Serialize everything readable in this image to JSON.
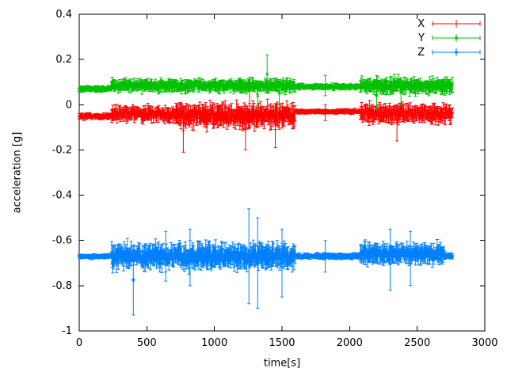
{
  "chart_data": {
    "type": "scatter",
    "style": "yerrorbars",
    "title": "",
    "xlabel": "time[s]",
    "ylabel": "acceleration [g]",
    "xlim": [
      0,
      3000
    ],
    "ylim": [
      -1,
      0.4
    ],
    "xticks": [
      0,
      500,
      1000,
      1500,
      2000,
      2500,
      3000
    ],
    "xtick_labels": [
      "0",
      "500",
      "1000",
      "1500",
      "2000",
      "2500",
      "3000"
    ],
    "yticks": [
      -1,
      -0.8,
      -0.6,
      -0.4,
      -0.2,
      0,
      0.2,
      0.4
    ],
    "ytick_labels": [
      "-1",
      "-0.8",
      "-0.6",
      "-0.4",
      "-0.2",
      "0",
      "0.2",
      "0.4"
    ],
    "grid": false,
    "legend_position": "top-right-inside",
    "background": "#ffffff",
    "data_t_start": 0,
    "data_t_end": 2760,
    "sample_step": 4,
    "series": [
      {
        "name": "X",
        "color": "#ff0000",
        "marker": "plus",
        "baseline": -0.05,
        "segments": [
          {
            "t0": 0,
            "t1": 240,
            "base": -0.05,
            "amp": 0.008,
            "err": 0.012
          },
          {
            "t0": 240,
            "t1": 700,
            "base": -0.04,
            "amp": 0.025,
            "err": 0.03
          },
          {
            "t0": 700,
            "t1": 1600,
            "base": -0.05,
            "amp": 0.035,
            "err": 0.045
          },
          {
            "t0": 1600,
            "t1": 2080,
            "base": -0.03,
            "amp": 0.006,
            "err": 0.01
          },
          {
            "t0": 2080,
            "t1": 2760,
            "base": -0.04,
            "amp": 0.03,
            "err": 0.035
          }
        ],
        "spikes": [
          {
            "t": 770,
            "lo": -0.21,
            "hi": -0.02
          },
          {
            "t": 1230,
            "lo": -0.2,
            "hi": -0.02
          },
          {
            "t": 1260,
            "lo": -0.1,
            "hi": 0.11
          },
          {
            "t": 1450,
            "lo": -0.19,
            "hi": -0.03
          },
          {
            "t": 1820,
            "lo": -0.07,
            "hi": 0.0
          },
          {
            "t": 2350,
            "lo": -0.16,
            "hi": 0.0
          }
        ]
      },
      {
        "name": "Y",
        "color": "#00c000",
        "marker": "cross",
        "baseline": 0.08,
        "segments": [
          {
            "t0": 0,
            "t1": 240,
            "base": 0.07,
            "amp": 0.008,
            "err": 0.012
          },
          {
            "t0": 240,
            "t1": 1600,
            "base": 0.085,
            "amp": 0.02,
            "err": 0.025
          },
          {
            "t0": 1600,
            "t1": 2080,
            "base": 0.08,
            "amp": 0.008,
            "err": 0.012
          },
          {
            "t0": 2080,
            "t1": 2760,
            "base": 0.085,
            "amp": 0.025,
            "err": 0.03
          }
        ],
        "spikes": [
          {
            "t": 1320,
            "lo": -0.01,
            "hi": 0.09
          },
          {
            "t": 1390,
            "lo": 0.05,
            "hi": 0.22
          },
          {
            "t": 1480,
            "lo": 0.0,
            "hi": 0.1
          },
          {
            "t": 1820,
            "lo": 0.04,
            "hi": 0.13
          },
          {
            "t": 2200,
            "lo": -0.02,
            "hi": 0.1
          },
          {
            "t": 2380,
            "lo": 0.0,
            "hi": 0.12
          }
        ]
      },
      {
        "name": "Z",
        "color": "#0080ff",
        "marker": "asterisk",
        "baseline": -0.67,
        "segments": [
          {
            "t0": 0,
            "t1": 240,
            "base": -0.67,
            "amp": 0.006,
            "err": 0.01
          },
          {
            "t0": 240,
            "t1": 1600,
            "base": -0.67,
            "amp": 0.04,
            "err": 0.05
          },
          {
            "t0": 1600,
            "t1": 2080,
            "base": -0.67,
            "amp": 0.008,
            "err": 0.012
          },
          {
            "t0": 2080,
            "t1": 2700,
            "base": -0.66,
            "amp": 0.03,
            "err": 0.04
          },
          {
            "t0": 2700,
            "t1": 2760,
            "base": -0.67,
            "amp": 0.01,
            "err": 0.015
          }
        ],
        "spikes": [
          {
            "t": 400,
            "lo": -0.93,
            "hi": -0.62
          },
          {
            "t": 640,
            "lo": -0.78,
            "hi": -0.56
          },
          {
            "t": 820,
            "lo": -0.8,
            "hi": -0.55
          },
          {
            "t": 1255,
            "lo": -0.88,
            "hi": -0.46
          },
          {
            "t": 1320,
            "lo": -0.9,
            "hi": -0.5
          },
          {
            "t": 1500,
            "lo": -0.85,
            "hi": -0.55
          },
          {
            "t": 1820,
            "lo": -0.74,
            "hi": -0.6
          },
          {
            "t": 2300,
            "lo": -0.82,
            "hi": -0.55
          },
          {
            "t": 2450,
            "lo": -0.8,
            "hi": -0.56
          }
        ]
      }
    ]
  }
}
